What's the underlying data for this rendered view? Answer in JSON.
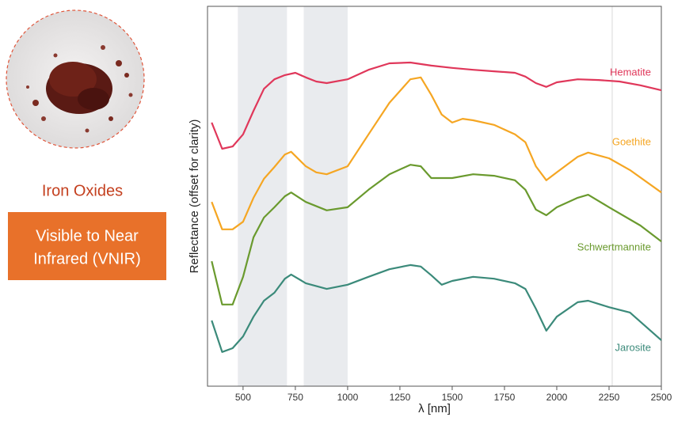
{
  "panel": {
    "title": "Iron Oxides",
    "badge_lines": [
      "Visible to Near",
      "Infrared (VNIR)"
    ]
  },
  "chart_data": {
    "type": "line",
    "xlabel": "λ [nm]",
    "ylabel": "Reflectance (offset for clarity)",
    "xlim": [
      330,
      2500
    ],
    "ylim": [
      0,
      10
    ],
    "xticks": [
      500,
      750,
      1000,
      1250,
      1500,
      1750,
      2000,
      2250,
      2500
    ],
    "shaded_regions": [
      [
        475,
        710
      ],
      [
        790,
        1000
      ]
    ],
    "vlines": [
      2265
    ],
    "series": [
      {
        "name": "Hematite",
        "color": "#e0375a",
        "x": [
          350,
          400,
          450,
          500,
          550,
          600,
          650,
          700,
          750,
          800,
          850,
          900,
          1000,
          1100,
          1200,
          1300,
          1400,
          1500,
          1600,
          1700,
          1800,
          1850,
          1900,
          1950,
          2000,
          2100,
          2200,
          2300,
          2400,
          2500
        ],
        "values": [
          6.94,
          6.25,
          6.31,
          6.63,
          7.25,
          7.83,
          8.08,
          8.19,
          8.25,
          8.13,
          8.02,
          7.98,
          8.08,
          8.33,
          8.5,
          8.52,
          8.44,
          8.38,
          8.33,
          8.29,
          8.25,
          8.15,
          7.98,
          7.88,
          8.0,
          8.08,
          8.06,
          8.02,
          7.92,
          7.79
        ]
      },
      {
        "name": "Goethite",
        "color": "#f5a623",
        "x": [
          350,
          400,
          450,
          500,
          550,
          600,
          650,
          700,
          730,
          800,
          850,
          900,
          1000,
          1100,
          1200,
          1300,
          1350,
          1400,
          1450,
          1500,
          1550,
          1600,
          1700,
          1800,
          1850,
          1900,
          1950,
          2000,
          2100,
          2150,
          2250,
          2350,
          2500
        ],
        "values": [
          4.85,
          4.13,
          4.13,
          4.33,
          4.96,
          5.46,
          5.77,
          6.1,
          6.17,
          5.79,
          5.63,
          5.58,
          5.79,
          6.63,
          7.46,
          8.08,
          8.13,
          7.67,
          7.15,
          6.94,
          7.04,
          7.0,
          6.88,
          6.63,
          6.42,
          5.79,
          5.42,
          5.63,
          6.04,
          6.15,
          6.0,
          5.69,
          5.1
        ]
      },
      {
        "name": "Schwertmannite",
        "color": "#6a9a2e",
        "x": [
          350,
          400,
          450,
          500,
          550,
          600,
          650,
          700,
          730,
          800,
          900,
          1000,
          1100,
          1200,
          1300,
          1350,
          1400,
          1500,
          1600,
          1700,
          1800,
          1850,
          1900,
          1950,
          2000,
          2100,
          2150,
          2250,
          2400,
          2500
        ],
        "values": [
          3.29,
          2.15,
          2.15,
          2.88,
          3.92,
          4.44,
          4.71,
          5.0,
          5.1,
          4.85,
          4.63,
          4.71,
          5.17,
          5.58,
          5.83,
          5.79,
          5.48,
          5.48,
          5.58,
          5.54,
          5.42,
          5.17,
          4.65,
          4.5,
          4.71,
          4.96,
          5.04,
          4.71,
          4.23,
          3.81
        ]
      },
      {
        "name": "Jarosite",
        "color": "#3b8a7a",
        "x": [
          350,
          400,
          450,
          500,
          550,
          600,
          650,
          700,
          730,
          800,
          900,
          1000,
          1100,
          1200,
          1300,
          1350,
          1400,
          1450,
          1500,
          1600,
          1700,
          1800,
          1850,
          1900,
          1950,
          2000,
          2100,
          2150,
          2250,
          2350,
          2500
        ],
        "values": [
          1.73,
          0.9,
          1.0,
          1.31,
          1.83,
          2.25,
          2.46,
          2.83,
          2.94,
          2.71,
          2.56,
          2.67,
          2.88,
          3.08,
          3.19,
          3.15,
          2.92,
          2.67,
          2.77,
          2.88,
          2.83,
          2.71,
          2.56,
          2.04,
          1.46,
          1.83,
          2.21,
          2.25,
          2.08,
          1.94,
          1.21
        ]
      }
    ]
  }
}
